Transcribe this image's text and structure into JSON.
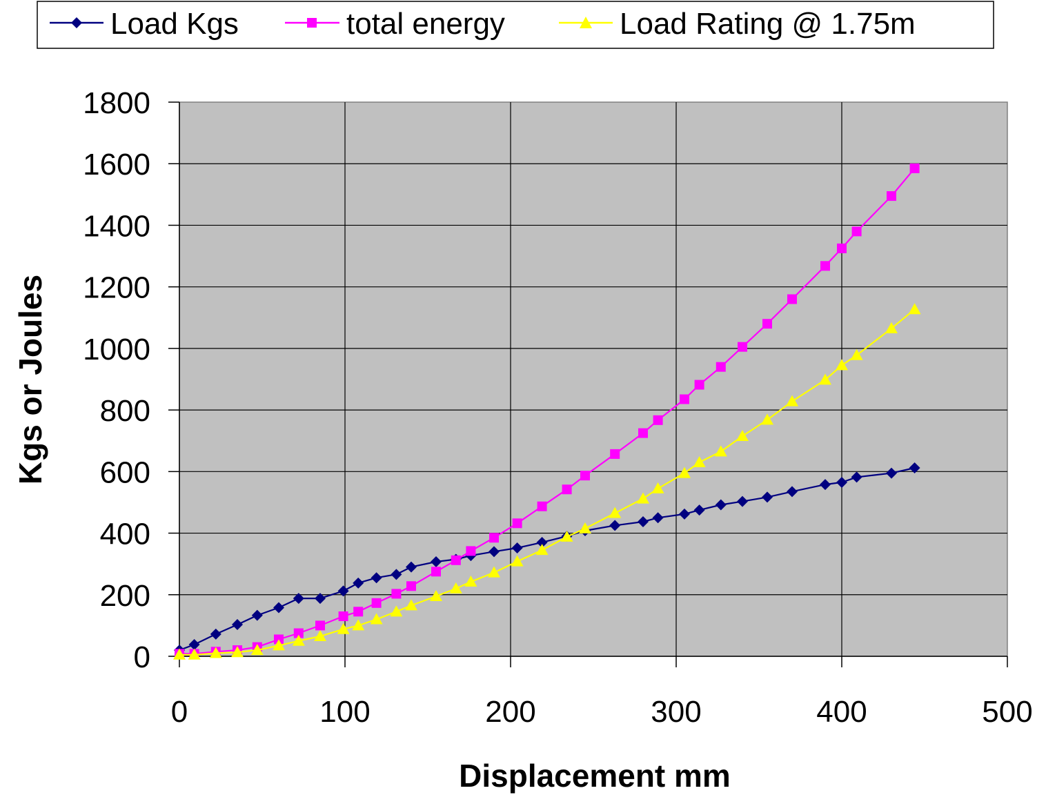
{
  "chart_data": {
    "type": "line",
    "xlabel": "Displacement mm",
    "ylabel": "Kgs or Joules",
    "xlim": [
      0,
      500
    ],
    "ylim": [
      0,
      1800
    ],
    "x_ticks": [
      "0",
      "100",
      "200",
      "300",
      "400",
      "500"
    ],
    "y_ticks": [
      "0",
      "200",
      "400",
      "600",
      "800",
      "1000",
      "1200",
      "1400",
      "1600",
      "1800"
    ],
    "grid": true,
    "plot_background": "#C0C0C0",
    "legend_position": "top",
    "series": [
      {
        "name": "Load Kgs",
        "color": "#000080",
        "marker": "diamond",
        "points": [
          [
            0,
            20
          ],
          [
            9,
            38
          ],
          [
            22,
            72
          ],
          [
            35,
            103
          ],
          [
            47,
            133
          ],
          [
            60,
            158
          ],
          [
            72,
            188
          ],
          [
            85,
            188
          ],
          [
            99,
            212
          ],
          [
            108,
            238
          ],
          [
            119,
            255
          ],
          [
            131,
            266
          ],
          [
            140,
            290
          ],
          [
            155,
            307
          ],
          [
            167,
            315
          ],
          [
            176,
            327
          ],
          [
            190,
            340
          ],
          [
            204,
            352
          ],
          [
            219,
            370
          ],
          [
            234,
            390
          ],
          [
            245,
            408
          ],
          [
            263,
            425
          ],
          [
            280,
            437
          ],
          [
            289,
            450
          ],
          [
            305,
            462
          ],
          [
            314,
            475
          ],
          [
            327,
            492
          ],
          [
            340,
            503
          ],
          [
            355,
            517
          ],
          [
            370,
            535
          ],
          [
            390,
            558
          ],
          [
            400,
            565
          ],
          [
            409,
            582
          ],
          [
            430,
            595
          ],
          [
            444,
            612
          ]
        ]
      },
      {
        "name": "total energy",
        "color": "#FF00FF",
        "marker": "square",
        "points": [
          [
            0,
            8
          ],
          [
            9,
            8
          ],
          [
            22,
            15
          ],
          [
            35,
            20
          ],
          [
            47,
            30
          ],
          [
            60,
            55
          ],
          [
            72,
            75
          ],
          [
            85,
            100
          ],
          [
            99,
            130
          ],
          [
            108,
            145
          ],
          [
            119,
            173
          ],
          [
            131,
            203
          ],
          [
            140,
            228
          ],
          [
            155,
            275
          ],
          [
            167,
            312
          ],
          [
            176,
            342
          ],
          [
            190,
            385
          ],
          [
            204,
            432
          ],
          [
            219,
            487
          ],
          [
            234,
            542
          ],
          [
            245,
            587
          ],
          [
            263,
            657
          ],
          [
            280,
            725
          ],
          [
            289,
            767
          ],
          [
            305,
            835
          ],
          [
            314,
            882
          ],
          [
            327,
            940
          ],
          [
            340,
            1005
          ],
          [
            355,
            1080
          ],
          [
            370,
            1160
          ],
          [
            390,
            1268
          ],
          [
            400,
            1325
          ],
          [
            409,
            1380
          ],
          [
            430,
            1495
          ],
          [
            444,
            1585
          ]
        ]
      },
      {
        "name": "Load Rating @ 1.75m",
        "color": "#FFFF00",
        "marker": "triangle",
        "points": [
          [
            0,
            5
          ],
          [
            9,
            5
          ],
          [
            22,
            10
          ],
          [
            35,
            13
          ],
          [
            47,
            20
          ],
          [
            60,
            35
          ],
          [
            72,
            50
          ],
          [
            85,
            65
          ],
          [
            99,
            88
          ],
          [
            108,
            100
          ],
          [
            119,
            120
          ],
          [
            131,
            145
          ],
          [
            140,
            165
          ],
          [
            155,
            195
          ],
          [
            167,
            220
          ],
          [
            176,
            242
          ],
          [
            190,
            272
          ],
          [
            204,
            308
          ],
          [
            219,
            345
          ],
          [
            234,
            388
          ],
          [
            245,
            415
          ],
          [
            263,
            465
          ],
          [
            280,
            512
          ],
          [
            289,
            545
          ],
          [
            305,
            595
          ],
          [
            314,
            630
          ],
          [
            327,
            665
          ],
          [
            340,
            715
          ],
          [
            355,
            768
          ],
          [
            370,
            828
          ],
          [
            390,
            898
          ],
          [
            400,
            945
          ],
          [
            409,
            978
          ],
          [
            430,
            1065
          ],
          [
            444,
            1127
          ]
        ]
      }
    ]
  }
}
